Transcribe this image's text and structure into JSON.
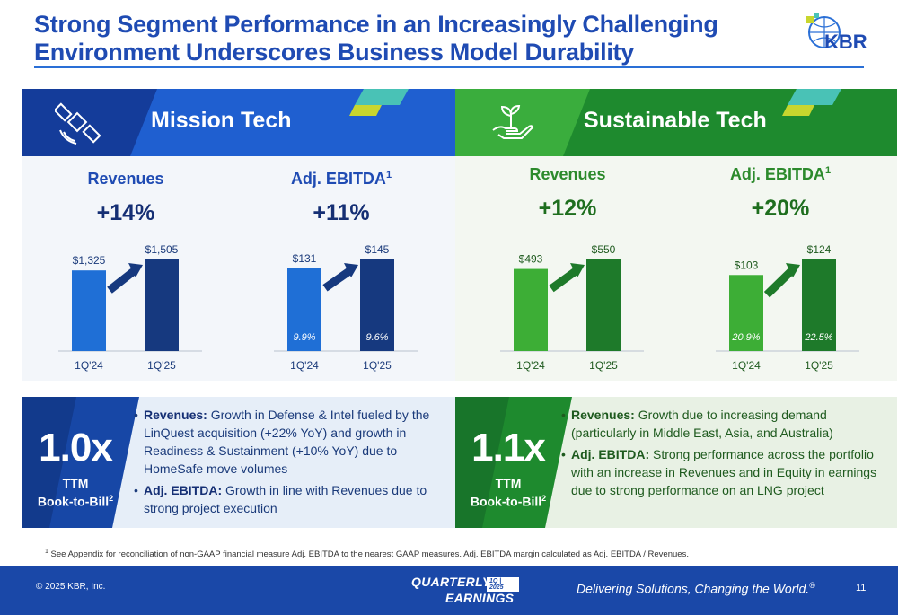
{
  "title": {
    "line1": "Strong Segment Performance in an Increasingly Challenging",
    "line2": "Environment Underscores Business Model Durability"
  },
  "logo": {
    "text": "KBR"
  },
  "colors": {
    "blue_primary": "#1f4bb3",
    "blue_dark": "#152f74",
    "blue_bar_light": "#1f6fd6",
    "blue_bar_dark": "#16397f",
    "green_primary": "#2c9a3a",
    "green_bar_light": "#3dae36",
    "green_bar_dark": "#1e7a2a",
    "accent_yellow": "#c8d62e",
    "accent_teal": "#49c2b6"
  },
  "mission": {
    "title": "Mission Tech",
    "icon": "satellite-icon",
    "revenues": {
      "label": "Revenues",
      "change": "+14%",
      "chart_data": {
        "type": "bar",
        "categories": [
          "1Q'24",
          "1Q'25"
        ],
        "values": [
          1325,
          1505
        ],
        "value_labels": [
          "$1,325",
          "$1,505"
        ]
      }
    },
    "ebitda": {
      "label": "Adj. EBITDA",
      "footnote_mark": "1",
      "change": "+11%",
      "chart_data": {
        "type": "bar",
        "categories": [
          "1Q'24",
          "1Q'25"
        ],
        "values": [
          131,
          145
        ],
        "value_labels": [
          "$131",
          "$145"
        ],
        "margins": [
          "9.9%",
          "9.6%"
        ]
      }
    },
    "book": {
      "value": "1.0x",
      "line1": "TTM",
      "line2": "Book-to-Bill",
      "footnote_mark": "2",
      "bullets": [
        {
          "head": "Revenues:",
          "text": " Growth in Defense & Intel fueled by the LinQuest acquisition (+22% YoY) and growth in Readiness & Sustainment (+10% YoY) due to HomeSafe move volumes"
        },
        {
          "head": "Adj. EBITDA:",
          "text": " Growth in line with Revenues due to strong project execution"
        }
      ]
    }
  },
  "sustainable": {
    "title": "Sustainable Tech",
    "icon": "plant-in-hand-icon",
    "revenues": {
      "label": "Revenues",
      "change": "+12%",
      "chart_data": {
        "type": "bar",
        "categories": [
          "1Q'24",
          "1Q'25"
        ],
        "values": [
          493,
          550
        ],
        "value_labels": [
          "$493",
          "$550"
        ]
      }
    },
    "ebitda": {
      "label": "Adj. EBITDA",
      "footnote_mark": "1",
      "change": "+20%",
      "chart_data": {
        "type": "bar",
        "categories": [
          "1Q'24",
          "1Q'25"
        ],
        "values": [
          103,
          124
        ],
        "value_labels": [
          "$103",
          "$124"
        ],
        "margins": [
          "20.9%",
          "22.5%"
        ]
      }
    },
    "book": {
      "value": "1.1x",
      "line1": "TTM",
      "line2": "Book-to-Bill",
      "footnote_mark": "2",
      "bullets": [
        {
          "head": "Revenues:",
          "text": " Growth due to increasing demand (particularly in Middle East, Asia, and Australia)"
        },
        {
          "head": "Adj. EBITDA:",
          "text": " Strong performance across the portfolio with an increase in Revenues and in Equity in earnings due to strong performance on an LNG project"
        }
      ]
    }
  },
  "footnote": {
    "mark": "1",
    "text": " See Appendix for reconciliation of non-GAAP financial measure Adj. EBITDA to the nearest GAAP measures. Adj. EBITDA margin calculated as Adj. EBITDA / Revenues."
  },
  "footer": {
    "copyright": "© 2025 KBR, Inc.",
    "brand_top": "QUARTERLY",
    "brand_badge": "1Q | 2025",
    "brand_bottom": "EARNINGS",
    "tagline": "Delivering Solutions, Changing the World.",
    "tagline_mark": "®",
    "page": "11"
  }
}
